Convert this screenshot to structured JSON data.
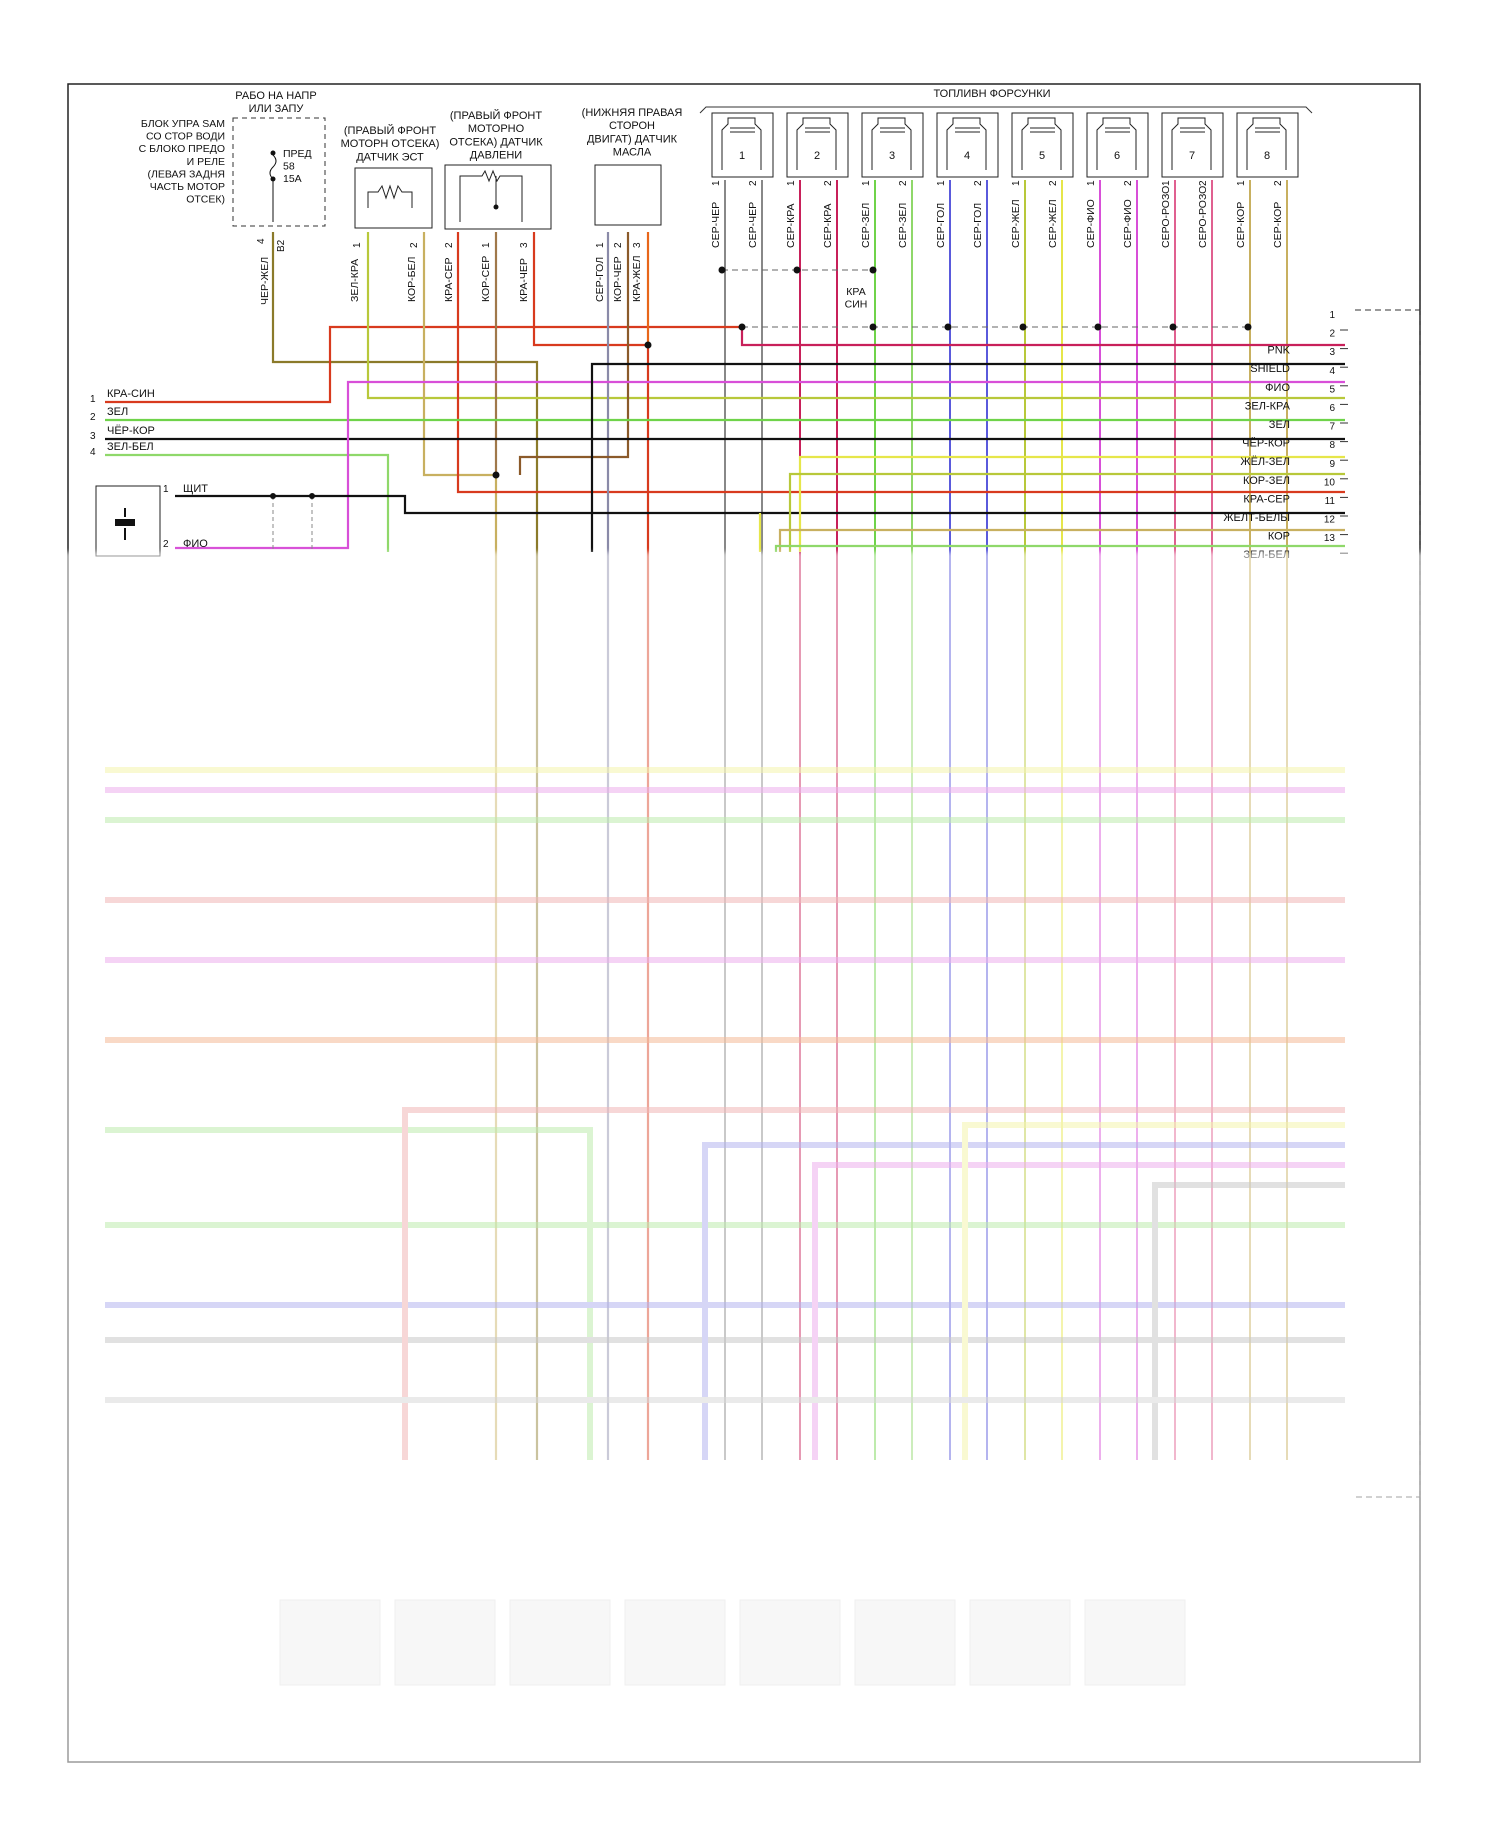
{
  "components": {
    "relay_block": {
      "header": "РАБО НА НАПР\nИЛИ ЗАПУ",
      "description": "БЛОК УПРА SAM\nСО СТОР ВОДИ\nС БЛОКО ПРЕДО\nИ РЕЛЕ\n(ЛЕВАЯ ЗАДНЯ\nЧАСТЬ МОТОР\nОТСЕК)",
      "fuse_label": "ПРЕД\n58\n15A",
      "pin_label": "4",
      "conn_label": "B2",
      "wire_label": "ЧЕР-ЖЕЛ"
    },
    "temp_sensor": {
      "title": "(ПРАВЫЙ ФРОНТ\nМОТОРН ОТСЕКА)\nДАТЧИК ЭСТ",
      "pins": [
        "1",
        "2"
      ],
      "wires": [
        "ЗЕЛ-КРА",
        "КОР-БЕЛ"
      ]
    },
    "pressure_sensor": {
      "title": "(ПРАВЫЙ ФРОНТ\nМОТОРНО\nОТСЕКА) ДАТЧИК\nДАВЛЕНИ",
      "pins": [
        "2",
        "1",
        "3"
      ],
      "wires": [
        "КРА-СЕР",
        "КОР-СЕР",
        "КРА-ЧЕР"
      ]
    },
    "oil_sensor": {
      "title": "(НИЖНЯЯ ПРАВАЯ\nСТОРОН\nДВИГАТ) ДАТЧИК\nМАСЛА",
      "pins": [
        "1",
        "2",
        "3"
      ],
      "wires": [
        "СЕР-ГОЛ",
        "КОР-ЧЕР",
        "КРА-ЖЕЛ"
      ]
    },
    "injectors": {
      "title": "ТОПЛИВН ФОРСУНКИ",
      "items": [
        {
          "num": "1",
          "wires": [
            "СЕР-ЧЕР",
            "СЕР-ЧЕР"
          ]
        },
        {
          "num": "2",
          "wires": [
            "СЕР-КРА",
            "СЕР-КРА"
          ]
        },
        {
          "num": "3",
          "wires": [
            "СЕР-ЗЕЛ",
            "СЕР-ЗЕЛ"
          ]
        },
        {
          "num": "4",
          "wires": [
            "СЕР-ГОЛ",
            "СЕР-ГОЛ"
          ]
        },
        {
          "num": "5",
          "wires": [
            "СЕР-ЖЕЛ",
            "СЕР-ЖЕЛ"
          ]
        },
        {
          "num": "6",
          "wires": [
            "СЕР-ФИО",
            "СЕР-ФИО"
          ]
        },
        {
          "num": "7",
          "wires": [
            "СЕРО-РОЗО",
            "СЕРО-РОЗО"
          ]
        },
        {
          "num": "8",
          "wires": [
            "СЕР-КОР",
            "СЕР-КОР"
          ]
        }
      ]
    },
    "splice_label": "КРА\nСИН",
    "shield_block": {
      "pin1": "1",
      "pin1_label": "ЩИТ",
      "pin2": "2",
      "pin2_label": "ФИО"
    }
  },
  "left_connector": [
    {
      "pin": "1",
      "label": "КРА-СИН"
    },
    {
      "pin": "2",
      "label": "ЗЕЛ"
    },
    {
      "pin": "3",
      "label": "ЧЁР-КОР"
    },
    {
      "pin": "4",
      "label": "ЗЕЛ-БЕЛ"
    }
  ],
  "ecu_connector": [
    {
      "pin": "1",
      "label": ""
    },
    {
      "pin": "2",
      "label": "PNK"
    },
    {
      "pin": "3",
      "label": "SHIELD"
    },
    {
      "pin": "4",
      "label": "ФИО"
    },
    {
      "pin": "5",
      "label": "ЗЕЛ-КРА"
    },
    {
      "pin": "6",
      "label": "ЗЕЛ"
    },
    {
      "pin": "7",
      "label": "ЧЁР-КОР"
    },
    {
      "pin": "8",
      "label": "ЖЁЛ-ЗЕЛ"
    },
    {
      "pin": "9",
      "label": "КОР-ЗЕЛ"
    },
    {
      "pin": "10",
      "label": "КРА-СЕР"
    },
    {
      "pin": "11",
      "label": "ЖЕЛТ-БЕЛЫ"
    },
    {
      "pin": "12",
      "label": "КОР"
    },
    {
      "pin": "13",
      "label": "ЗЕЛ-БЕЛ"
    }
  ],
  "colors": {
    "red": "#d83a1e",
    "orange": "#e8661a",
    "green": "#6fd34a",
    "olive": "#8b7a2a",
    "magenta": "#d84fd8",
    "crimson": "#c8205a",
    "black": "#111111",
    "gray": "#8a8a8a",
    "blue": "#5a5adc",
    "yellow": "#e6e64a",
    "yellowgreen": "#b8c83a"
  }
}
